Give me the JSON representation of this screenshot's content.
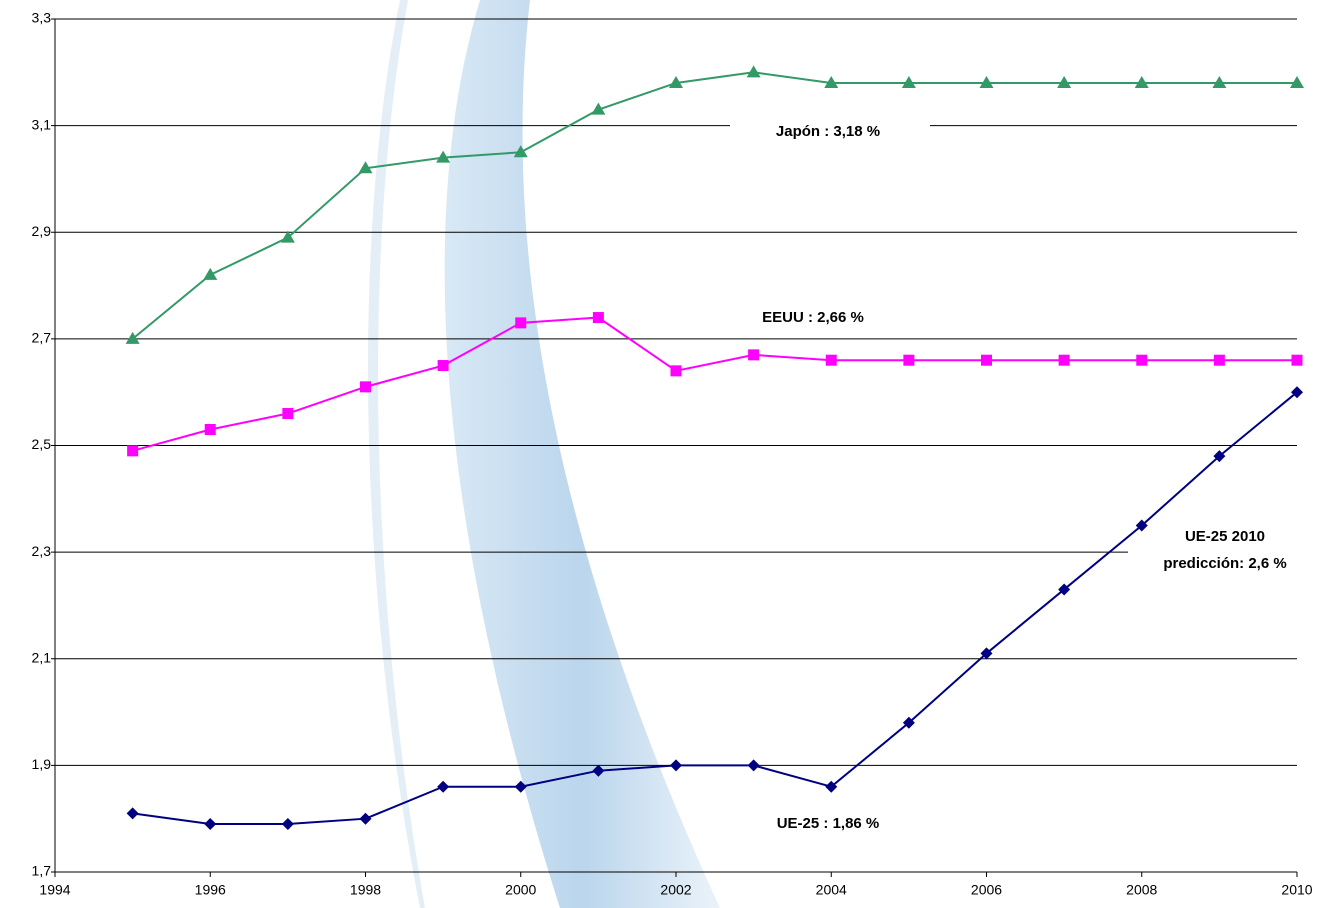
{
  "chart_data": {
    "type": "line",
    "x": [
      1995,
      1996,
      1997,
      1998,
      1999,
      2000,
      2001,
      2002,
      2003,
      2004,
      2005,
      2006,
      2007,
      2008,
      2009,
      2010
    ],
    "series": [
      {
        "color": "#339966",
        "marker": "triangle",
        "values": [
          2.7,
          2.82,
          2.89,
          3.02,
          3.04,
          3.05,
          3.13,
          3.18,
          3.2,
          3.18,
          3.18,
          3.18,
          3.18,
          3.18,
          3.18,
          3.18
        ]
      },
      {
        "color": "#ff00ff",
        "marker": "square",
        "values": [
          2.49,
          2.53,
          2.56,
          2.61,
          2.65,
          2.73,
          2.74,
          2.64,
          2.67,
          2.66,
          2.66,
          2.66,
          2.66,
          2.66,
          2.66,
          2.66
        ]
      },
      {
        "color": "#000080",
        "marker": "diamond",
        "values": [
          1.81,
          1.79,
          1.79,
          1.8,
          1.86,
          1.86,
          1.89,
          1.9,
          1.9,
          1.86,
          1.98,
          2.11,
          2.23,
          2.35,
          2.48,
          2.6
        ]
      }
    ],
    "xlim": [
      1994,
      2010
    ],
    "xticks": [
      1994,
      1996,
      1998,
      2000,
      2002,
      2004,
      2006,
      2008,
      2010
    ],
    "ylim": [
      1.7,
      3.3
    ],
    "yticks": [
      {
        "value": 1.7,
        "label": "1,7"
      },
      {
        "value": 1.9,
        "label": "1,9"
      },
      {
        "value": 2.1,
        "label": "2,1"
      },
      {
        "value": 2.3,
        "label": "2,3"
      },
      {
        "value": 2.5,
        "label": "2,5"
      },
      {
        "value": 2.7,
        "label": "2,7"
      },
      {
        "value": 2.9,
        "label": "2,9"
      },
      {
        "value": 3.1,
        "label": "3,1"
      },
      {
        "value": 3.3,
        "label": "3,3"
      }
    ],
    "grid": true,
    "annotations": [
      "Japón : 3,18  %",
      "EEUU : 2,66 %",
      "UE-25 : 1,86 %",
      "UE-25 2010",
      "predicción: 2,6 %"
    ]
  }
}
